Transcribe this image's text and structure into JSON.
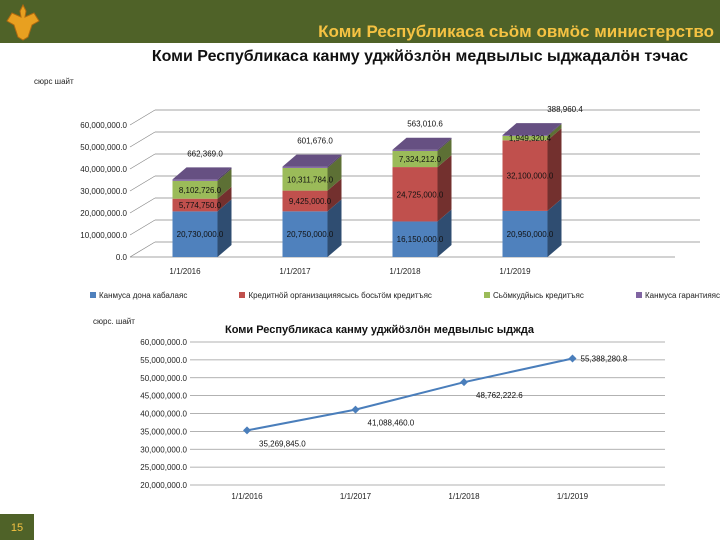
{
  "header": {
    "ministry": "Коми Республикаса сьӧм овмӧс министерство"
  },
  "page_number": "15",
  "colors": {
    "header": "#4f6228",
    "accent": "#f5c242",
    "blue": "#4f81bd",
    "red": "#c0504d",
    "green": "#9bbb59",
    "purple": "#8064a2",
    "line": "#4a7ebb"
  },
  "chart_data": [
    {
      "type": "bar",
      "stacked": true,
      "three_d": true,
      "title": "Коми Республикаса канму уджйӧзлӧн медвылыс ыджадалӧн тэчас",
      "unit_label": "сюрс шайт",
      "categories": [
        "1/1/2016",
        "1/1/2017",
        "1/1/2018",
        "1/1/2019"
      ],
      "ylim": [
        0,
        60000000
      ],
      "yticks": [
        "0.0",
        "10,000,000.0",
        "20,000,000.0",
        "30,000,000.0",
        "40,000,000.0",
        "50,000,000.0",
        "60,000,000.0"
      ],
      "grid": true,
      "legend": "bottom",
      "series": [
        {
          "name": "Канмуса дона кабалаяс",
          "color": "#4f81bd",
          "values": [
            20730000,
            20750000,
            16150000,
            20950000
          ],
          "labels": [
            "20,730,000.0",
            "20,750,000.0",
            "16,150,000.0",
            "20,950,000.0"
          ]
        },
        {
          "name": "Кредитнӧй организацияясысь босьтӧм кредитъяс",
          "color": "#c0504d",
          "values": [
            5774750,
            9425000,
            24725000,
            32100000
          ],
          "labels": [
            "5,774,750.0",
            "9,425,000.0",
            "24,725,000.0",
            "32,100,000.0"
          ]
        },
        {
          "name": "Сьӧмкудйысь кредитъяс",
          "color": "#9bbb59",
          "values": [
            8102726,
            10311784,
            7324212,
            1949320.4
          ],
          "labels": [
            "8,102,726.0",
            "10,311,784.0",
            "7,324,212.0",
            "1,949,320.4"
          ]
        },
        {
          "name": "Канмуса гарантияяс",
          "color": "#8064a2",
          "values": [
            662369,
            601676,
            563010.6,
            388960.4
          ],
          "labels": [
            "662,369.0",
            "601,676.0",
            "563,010.6",
            "388,960.4"
          ]
        }
      ]
    },
    {
      "type": "line",
      "title": "Коми Республикаса канму уджйӧзлӧн медвылыс ыджда",
      "unit_label": "сюрс. шайт",
      "categories": [
        "1/1/2016",
        "1/1/2017",
        "1/1/2018",
        "1/1/2019"
      ],
      "ylim": [
        20000000,
        60000000
      ],
      "yticks": [
        "20,000,000.0",
        "25,000,000.0",
        "30,000,000.0",
        "35,000,000.0",
        "40,000,000.0",
        "45,000,000.0",
        "50,000,000.0",
        "55,000,000.0",
        "60,000,000.0"
      ],
      "grid": true,
      "values": [
        35269845,
        41088460,
        48762222.6,
        55388280.8
      ],
      "labels": [
        "35,269,845.0",
        "41,088,460.0",
        "48,762,222.6",
        "55,388,280.8"
      ]
    }
  ]
}
